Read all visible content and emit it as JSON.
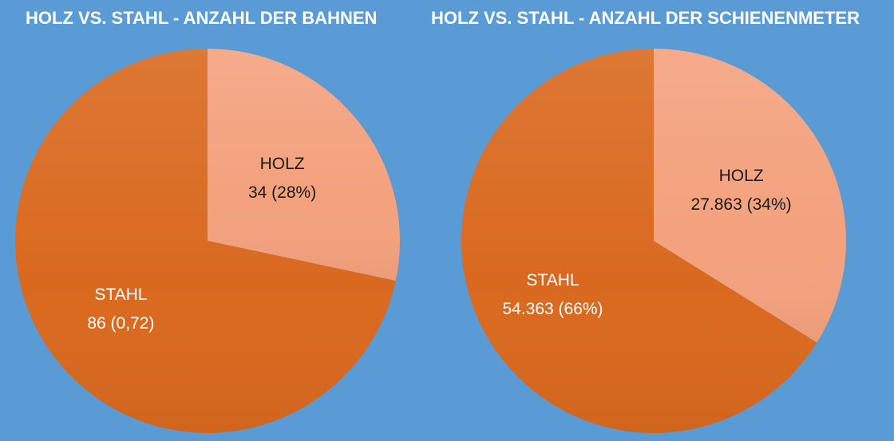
{
  "chart_data": [
    {
      "type": "pie",
      "title": "HOLZ VS. STAHL - ANZAHL DER BAHNEN",
      "slices": [
        {
          "label": "HOLZ",
          "value": 34,
          "value_text": "34 (28%)",
          "color": "#f4a27e"
        },
        {
          "label": "STAHL",
          "value": 86,
          "value_text": "86 (0,72)",
          "color": "#d9691f"
        }
      ],
      "legend": "none",
      "start": "top, clockwise"
    },
    {
      "type": "pie",
      "title": "HOLZ VS. STAHL - ANZAHL DER SCHIENENMETER",
      "slices": [
        {
          "label": "HOLZ",
          "value": 27863,
          "value_text": "27.863 (34%)",
          "color": "#f4a27e"
        },
        {
          "label": "STAHL",
          "value": 54363,
          "value_text": "54.363 (66%)",
          "color": "#d9691f"
        }
      ],
      "legend": "none",
      "start": "top, clockwise"
    }
  ],
  "colors": {
    "background": "#5b9bd5",
    "title_text": "#ffffff",
    "holz": "#f4a27e",
    "stahl": "#d9691f"
  }
}
